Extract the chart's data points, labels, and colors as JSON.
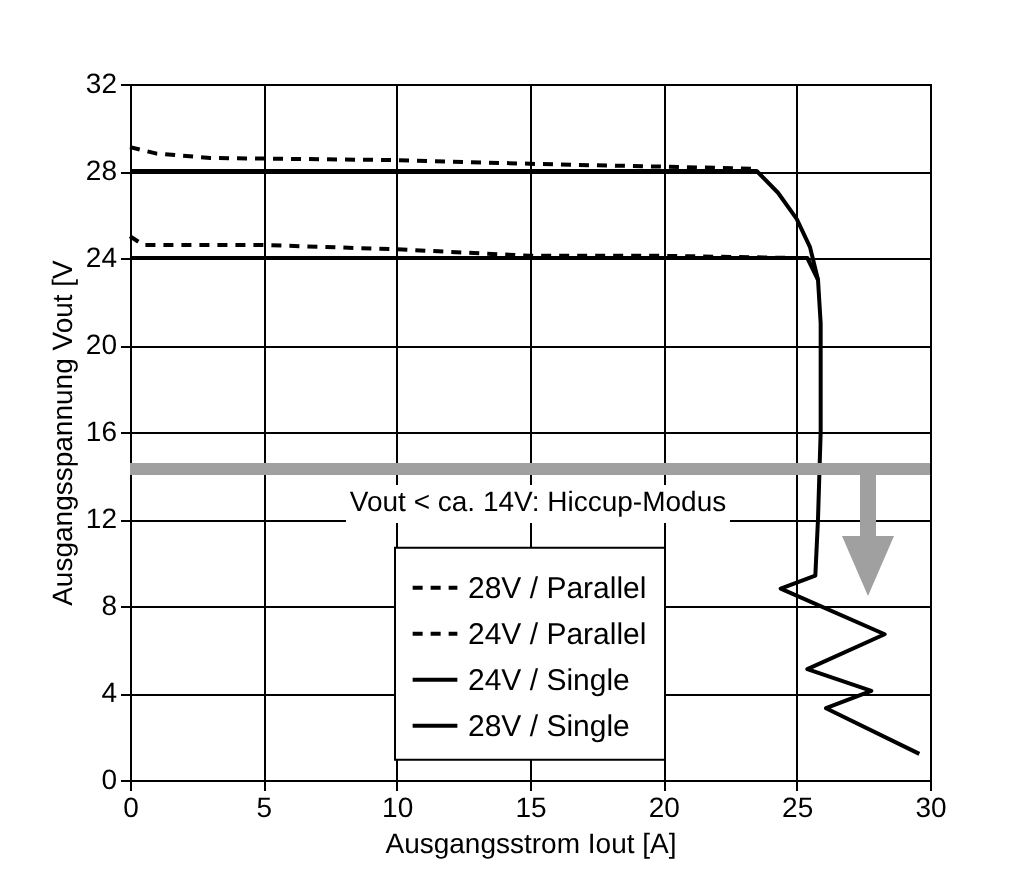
{
  "chart_data": {
    "type": "line",
    "xlabel": "Ausgangsstrom Iout [A]",
    "ylabel": "Ausgangsspannung Vout [V",
    "xlim": [
      0,
      30
    ],
    "xticks": [
      0,
      5,
      10,
      15,
      20,
      25,
      30
    ],
    "ylim": [
      0,
      32
    ],
    "yticks": [
      0,
      4,
      8,
      12,
      16,
      20,
      24,
      28,
      32
    ],
    "grid": true,
    "legend": "bottom",
    "marker": "none",
    "series": [
      {
        "name": "28V / Parallel",
        "color": "#000000",
        "line_style": "dashed",
        "x": [
          0,
          1,
          3,
          10,
          16,
          20,
          23.5
        ],
        "values": [
          29.1,
          28.8,
          28.6,
          28.5,
          28.3,
          28.2,
          28.1
        ]
      },
      {
        "name": "24V / Parallel",
        "color": "#000000",
        "line_style": "dashed",
        "x": [
          0,
          0.5,
          5,
          10,
          15,
          20,
          25
        ],
        "values": [
          25,
          24.6,
          24.6,
          24.4,
          24.1,
          24.1,
          24
        ]
      },
      {
        "name": "24V / Single",
        "color": "#000000",
        "line_style": "solid",
        "x": [
          0,
          25.4,
          25.8,
          25.9,
          25.9,
          25.8,
          25.7,
          24.4,
          28.3,
          25.4,
          27.8,
          26.1,
          29.6
        ],
        "values": [
          24,
          24,
          23,
          21,
          16,
          12,
          9.4,
          8.8,
          6.7,
          5.1,
          4.1,
          3.3,
          1.2
        ]
      },
      {
        "name": "28V / Single",
        "color": "#000000",
        "line_style": "solid",
        "x": [
          0,
          23.5,
          24.3,
          25,
          25.5,
          25.8
        ],
        "values": [
          28,
          28,
          27,
          25.8,
          24.5,
          23
        ]
      }
    ],
    "ref_lines": [
      {
        "axis": "y",
        "value": 14.3,
        "label": "Vout < ca. 14V: Hiccup-Modus",
        "color": "#a0a0a0"
      }
    ]
  }
}
